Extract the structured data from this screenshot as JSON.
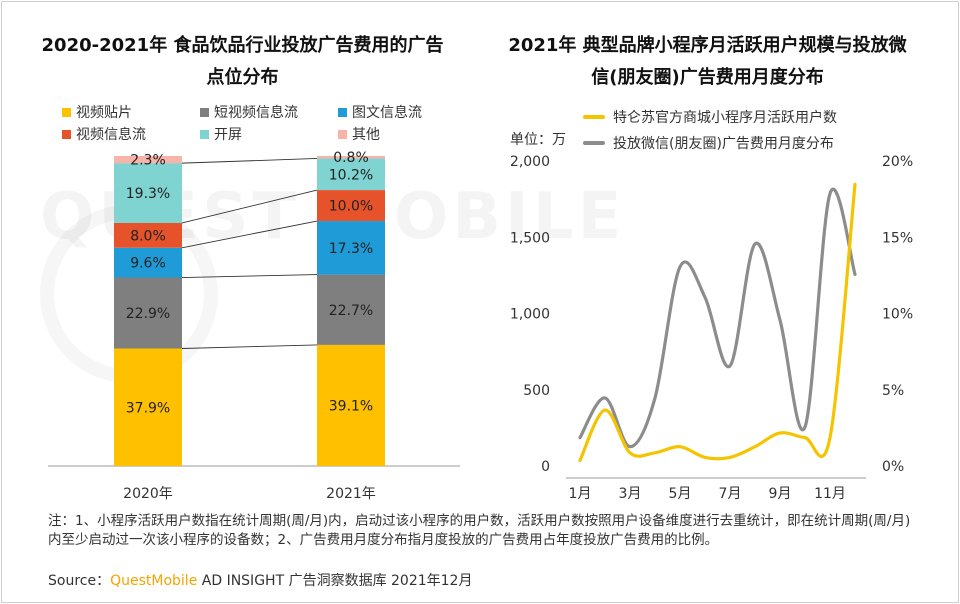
{
  "left_chart_title": "2020-2021年 食品饮品行业投放广告费用的广告点位分布",
  "right_chart_title": "2021年 典型品牌小程序月活跃用户规模与投放微信(朋友圈)广告费用月度分布",
  "watermark": "QUEST MOBILE",
  "note": "注：1、小程序活跃用户数指在统计周期(周/月)内，启动过该小程序的用户数，活跃用户数按照用户设备维度进行去重统计，即在统计周期(周/月)内至少启动过一次该小程序的设备数；2、广告费用月度分布指月度投放的广告费用占年度投放广告费用的比例。",
  "source": {
    "prefix": "Source：",
    "brand": "QuestMobile",
    "rest": " AD INSIGHT 广告洞察数据库 2021年12月"
  },
  "colors": {
    "video_post": "#ffc000",
    "short_video": "#7f7f7f",
    "image_text": "#1f9bd7",
    "video_feed": "#e6532b",
    "splash": "#7fd3d0",
    "other": "#f8b4a8",
    "users_line": "#f5c400",
    "ad_line": "#8c8c8c"
  },
  "chart_data": [
    {
      "type": "bar",
      "stacked": true,
      "title": "2020-2021年 食品饮品行业投放广告费用的广告点位分布",
      "categories": [
        "2020年",
        "2021年"
      ],
      "series": [
        {
          "name": "视频贴片",
          "values": [
            37.9,
            39.1
          ],
          "labels": [
            "37.9%",
            "39.1%"
          ]
        },
        {
          "name": "短视频信息流",
          "values": [
            22.9,
            22.7
          ],
          "labels": [
            "22.9%",
            "22.7%"
          ]
        },
        {
          "name": "图文信息流",
          "values": [
            9.6,
            17.3
          ],
          "labels": [
            "9.6%",
            "17.3%"
          ]
        },
        {
          "name": "视频信息流",
          "values": [
            8.0,
            10.0
          ],
          "labels": [
            "8.0%",
            "10.0%"
          ]
        },
        {
          "name": "开屏",
          "values": [
            19.3,
            10.2
          ],
          "labels": [
            "19.3%",
            "10.2%"
          ]
        },
        {
          "name": "其他",
          "values": [
            2.3,
            0.8
          ],
          "labels": [
            "2.3%",
            "0.8%"
          ]
        }
      ],
      "ylim": [
        0,
        100
      ],
      "legend": "top"
    },
    {
      "type": "line",
      "title": "2021年 典型品牌小程序月活跃用户规模与投放微信(朋友圈)广告费用月度分布",
      "x": [
        1,
        2,
        3,
        4,
        5,
        6,
        7,
        8,
        9,
        10,
        11,
        12
      ],
      "x_tick_labels": [
        "1月",
        "3月",
        "5月",
        "7月",
        "9月",
        "11月"
      ],
      "y_unit_label": "单位：万",
      "y_left_ticks": [
        "0",
        "500",
        "1,000",
        "1,500",
        "2,000"
      ],
      "y_left_range": [
        0,
        2000
      ],
      "y_right_ticks": [
        "0%",
        "5%",
        "10%",
        "15%",
        "20%"
      ],
      "y_right_range": [
        0,
        20
      ],
      "series": [
        {
          "name": "特仑苏官方商城小程序月活跃用户数",
          "axis": "left",
          "values": [
            30,
            360,
            80,
            80,
            120,
            50,
            50,
            120,
            210,
            180,
            180,
            1840
          ]
        },
        {
          "name": "投放微信(朋友圈)广告费用月度分布",
          "axis": "right",
          "values": [
            1.8,
            4.4,
            1.2,
            4.4,
            13.0,
            11.0,
            6.5,
            14.5,
            9.5,
            2.5,
            17.8,
            12.5
          ]
        }
      ],
      "legend": "top"
    }
  ]
}
